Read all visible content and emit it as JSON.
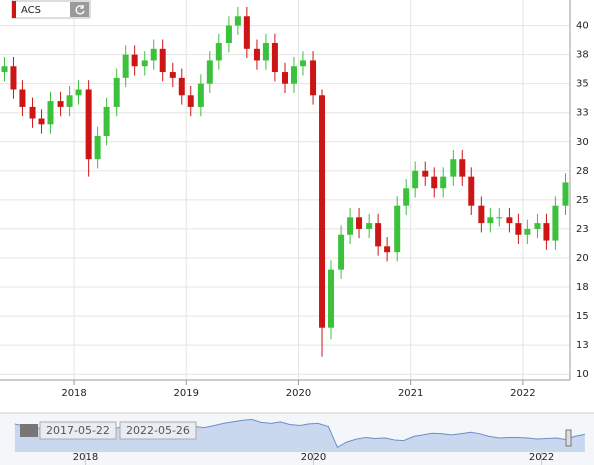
{
  "chart_data": {
    "type": "candlestick",
    "title": "ACS",
    "x": [
      2017.38,
      2017.46,
      2017.54,
      2017.63,
      2017.71,
      2017.79,
      2017.88,
      2017.96,
      2018.04,
      2018.13,
      2018.21,
      2018.29,
      2018.38,
      2018.46,
      2018.54,
      2018.63,
      2018.71,
      2018.79,
      2018.88,
      2018.96,
      2019.04,
      2019.13,
      2019.21,
      2019.29,
      2019.38,
      2019.46,
      2019.54,
      2019.63,
      2019.71,
      2019.79,
      2019.88,
      2019.96,
      2020.04,
      2020.13,
      2020.21,
      2020.29,
      2020.38,
      2020.46,
      2020.54,
      2020.63,
      2020.71,
      2020.79,
      2020.88,
      2020.96,
      2021.04,
      2021.13,
      2021.21,
      2021.29,
      2021.38,
      2021.46,
      2021.54,
      2021.63,
      2021.71,
      2021.79,
      2021.88,
      2021.96,
      2022.04,
      2022.13,
      2022.21,
      2022.29,
      2022.38
    ],
    "open": [
      36,
      36.5,
      34.5,
      33,
      32,
      31.5,
      33.5,
      33,
      34,
      34.5,
      28.5,
      30.5,
      33,
      35.5,
      37.5,
      36.5,
      37,
      38,
      36,
      35.5,
      34,
      33,
      35,
      37,
      38.5,
      40,
      40.8,
      38,
      37,
      38.5,
      36,
      35,
      36.5,
      37,
      34,
      14,
      19,
      22,
      23.5,
      22.5,
      23,
      21,
      20.5,
      24.5,
      26,
      27.5,
      27,
      26,
      27,
      28.5,
      27,
      24.5,
      23,
      23.5,
      23.5,
      23,
      22,
      22.5,
      23,
      21.5,
      24.5
    ],
    "high": [
      37.3,
      37.3,
      35.3,
      33.8,
      32.8,
      34.3,
      34.3,
      34.8,
      35.3,
      35.3,
      31.3,
      33.8,
      36.3,
      38.3,
      38.3,
      37.8,
      38.8,
      38.8,
      36.8,
      36.3,
      34.8,
      35.8,
      37.8,
      39.3,
      40.8,
      41.6,
      41.6,
      38.8,
      39.3,
      39.3,
      36.8,
      37.3,
      37.8,
      37.8,
      34.5,
      19.8,
      22.8,
      24.3,
      24.3,
      23.8,
      23.8,
      21.8,
      25.3,
      26.8,
      28.3,
      28.3,
      27.8,
      27.8,
      29.3,
      29.3,
      27.8,
      25.3,
      24.3,
      24.3,
      24.3,
      23.8,
      23.3,
      23.8,
      23.8,
      25.3,
      27.3
    ],
    "low": [
      35.2,
      33.7,
      32.2,
      31.2,
      30.7,
      30.7,
      32.2,
      32.2,
      33.2,
      27,
      27.7,
      29.7,
      32.2,
      34.7,
      35.7,
      35.7,
      36.2,
      35.2,
      34.7,
      33.2,
      32.2,
      32.2,
      34.2,
      36.2,
      37.7,
      39.2,
      37.2,
      36.2,
      36.2,
      35.2,
      34.2,
      34.2,
      35.7,
      33.2,
      11.5,
      13,
      18.2,
      21.2,
      21.7,
      21.7,
      20.2,
      19.7,
      19.7,
      23.7,
      25.2,
      26.2,
      25.2,
      25.2,
      26.2,
      26.2,
      23.7,
      22.2,
      22.2,
      22.7,
      22.2,
      21.2,
      21.2,
      21.7,
      20.7,
      20.7,
      23.7
    ],
    "close": [
      36.5,
      34.5,
      33,
      32,
      31.5,
      33.5,
      33,
      34,
      34.5,
      28.5,
      30.5,
      33,
      35.5,
      37.5,
      36.5,
      37,
      38,
      36,
      35.5,
      34,
      33,
      35,
      37,
      38.5,
      40,
      40.8,
      38,
      37,
      38.5,
      36,
      35,
      36.5,
      37,
      34,
      14,
      19,
      22,
      23.5,
      22.5,
      23,
      21,
      20.5,
      24.5,
      26,
      27.5,
      27,
      26,
      27,
      28.5,
      27,
      24.5,
      23,
      23.5,
      23.5,
      23,
      22,
      22.5,
      23,
      21.5,
      24.5,
      26.5
    ],
    "up_color": "#3cc13c",
    "down_color": "#cc1616",
    "xlim": [
      2017.34,
      2022.42
    ],
    "xticks": [
      2018,
      2019,
      2020,
      2021,
      2022
    ],
    "ylim": [
      9.5,
      42.2
    ],
    "yticks": [
      10,
      {
        "value": 12.5,
        "label": "13"
      },
      15,
      {
        "value": 17.5,
        "label": "18"
      },
      20,
      {
        "value": 22.5,
        "label": "23"
      },
      25,
      {
        "value": 27.5,
        "label": "28"
      },
      30,
      {
        "value": 32.5,
        "label": "33"
      },
      35,
      {
        "value": 37.5,
        "label": "38"
      },
      40
    ],
    "grid": true,
    "navigator": {
      "start_date": "2017-05-22",
      "end_date": "2022-05-26",
      "xlim": [
        2017.25,
        2022.46
      ],
      "xticks": [
        2018,
        2020,
        2022
      ]
    }
  }
}
